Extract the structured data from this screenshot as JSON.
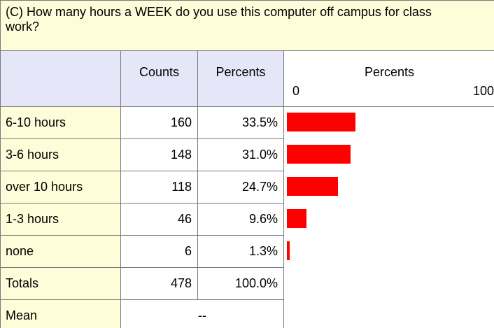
{
  "title": "(C) How many hours a WEEK do you use this computer off campus for class work?",
  "columns": [
    "Counts",
    "Percents"
  ],
  "bar_header": "Percents",
  "xlim": [
    0,
    100
  ],
  "xticks": [
    0,
    100
  ],
  "bar_color": "#ff0000",
  "rows": [
    {
      "label": "6-10 hours",
      "count": 160,
      "percent": 33.5,
      "percent_label": "33.5%"
    },
    {
      "label": "3-6 hours",
      "count": 148,
      "percent": 31.0,
      "percent_label": "31.0%"
    },
    {
      "label": "over 10 hours",
      "count": 118,
      "percent": 24.7,
      "percent_label": "24.7%"
    },
    {
      "label": "1-3 hours",
      "count": 46,
      "percent": 9.6,
      "percent_label": "9.6%"
    },
    {
      "label": "none",
      "count": 6,
      "percent": 1.3,
      "percent_label": "1.3%"
    }
  ],
  "totals": {
    "label": "Totals",
    "count": 478,
    "percent": 100.0,
    "percent_label": "100.0%"
  },
  "mean": {
    "label": "Mean",
    "value": "--"
  }
}
